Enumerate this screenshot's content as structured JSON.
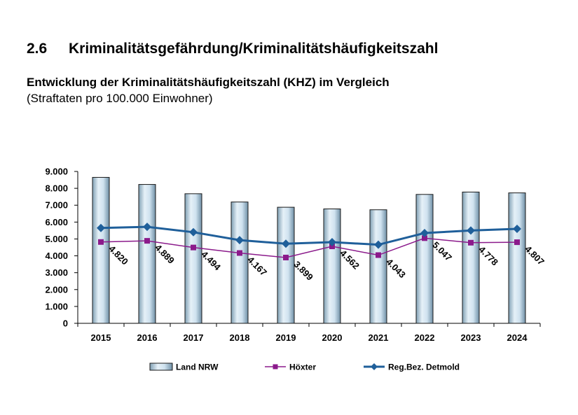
{
  "header": {
    "section_number": "2.6",
    "section_title": "Kriminalitätsgefährdung/Kriminalitätshäufigkeitszahl"
  },
  "chart_data": {
    "type": "bar",
    "title": "Entwicklung der Kriminalitätshäufigkeitszahl (KHZ) im Vergleich",
    "subtitle": "(Straftaten pro 100.000 Einwohner)",
    "categories": [
      "2015",
      "2016",
      "2017",
      "2018",
      "2019",
      "2020",
      "2021",
      "2022",
      "2023",
      "2024"
    ],
    "ylim": [
      0,
      9000
    ],
    "yticks": [
      "0",
      "1.000",
      "2.000",
      "3.000",
      "4.000",
      "5.000",
      "6.000",
      "7.000",
      "8.000",
      "9.000"
    ],
    "grid": false,
    "legend_position": "bottom",
    "series": [
      {
        "name": "Land NRW",
        "kind": "bar",
        "color": "#b8d4e6",
        "values": [
          8650,
          8230,
          7680,
          7190,
          6880,
          6780,
          6730,
          7640,
          7780,
          7730
        ]
      },
      {
        "name": "Höxter",
        "kind": "line",
        "color": "#8b1a8b",
        "marker": "square",
        "values": [
          4820,
          4889,
          4494,
          4167,
          3899,
          4562,
          4043,
          5047,
          4778,
          4807
        ],
        "labels": [
          "4.820",
          "4.889",
          "4.494",
          "4.167",
          "3.899",
          "4.562",
          "4.043",
          "5.047",
          "4.778",
          "4.807"
        ]
      },
      {
        "name": "Reg.Bez. Detmold",
        "kind": "line",
        "color": "#1f5f9a",
        "marker": "diamond",
        "values": [
          5650,
          5720,
          5400,
          4930,
          4720,
          4810,
          4660,
          5350,
          5500,
          5600
        ]
      }
    ]
  }
}
